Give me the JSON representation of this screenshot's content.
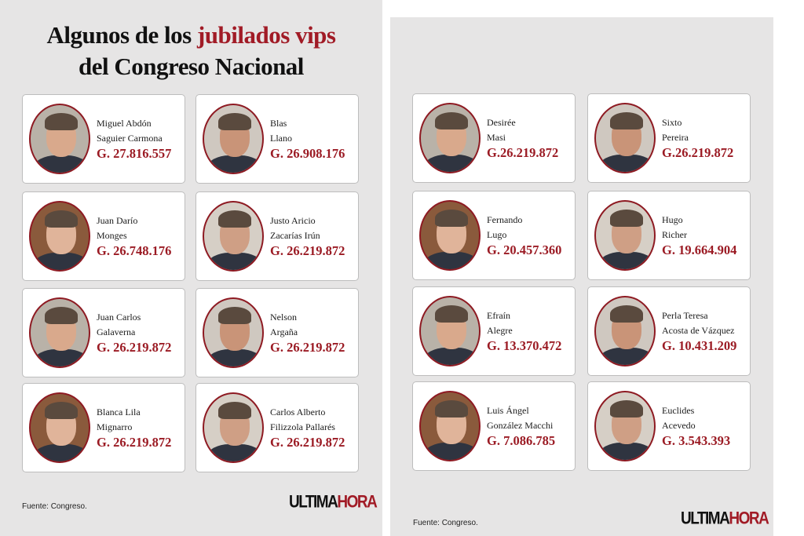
{
  "title": {
    "part1": "Algunos de los ",
    "highlight": "jubilados vips",
    "line2": "del Congreso Nacional"
  },
  "colors": {
    "accent": "#9b1b24",
    "panel_bg": "#e6e5e5"
  },
  "left_cards": [
    {
      "first": "Miguel Abdón",
      "last": "Saguier Carmona",
      "amount": "G. 27.816.557"
    },
    {
      "first": "Blas",
      "last": "Llano",
      "amount": "G. 26.908.176"
    },
    {
      "first": "Juan Darío",
      "last": "Monges",
      "amount": "G. 26.748.176"
    },
    {
      "first": "Justo Aricio",
      "last": "Zacarías Irún",
      "amount": "G. 26.219.872"
    },
    {
      "first": "Juan Carlos",
      "last": "Galaverna",
      "amount": "G. 26.219.872"
    },
    {
      "first": "Nelson",
      "last": "Argaña",
      "amount": "G. 26.219.872"
    },
    {
      "first": "Blanca Lila",
      "last": "Mignarro",
      "amount": "G. 26.219.872"
    },
    {
      "first": "Carlos Alberto",
      "last": "Filizzola Pallarés",
      "amount": "G. 26.219.872"
    }
  ],
  "right_cards": [
    {
      "first": "Desirée",
      "last": "Masi",
      "amount": "G.26.219.872"
    },
    {
      "first": "Sixto",
      "last": "Pereira",
      "amount": "G.26.219.872"
    },
    {
      "first": "Fernando",
      "last": "Lugo",
      "amount": "G. 20.457.360"
    },
    {
      "first": "Hugo",
      "last": "Richer",
      "amount": "G. 19.664.904"
    },
    {
      "first": "Efraín",
      "last": "Alegre",
      "amount": "G. 13.370.472"
    },
    {
      "first": "Perla Teresa",
      "last": "Acosta de Vázquez",
      "amount": "G. 10.431.209"
    },
    {
      "first": "Luis Ángel",
      "last": "González Macchi",
      "amount": "G. 7.086.785"
    },
    {
      "first": "Euclides",
      "last": "Acevedo",
      "amount": "G. 3.543.393"
    }
  ],
  "footer": {
    "source": "Fuente: Congreso.",
    "logo_part1": "ULTIMA",
    "logo_part2": "HORA"
  }
}
